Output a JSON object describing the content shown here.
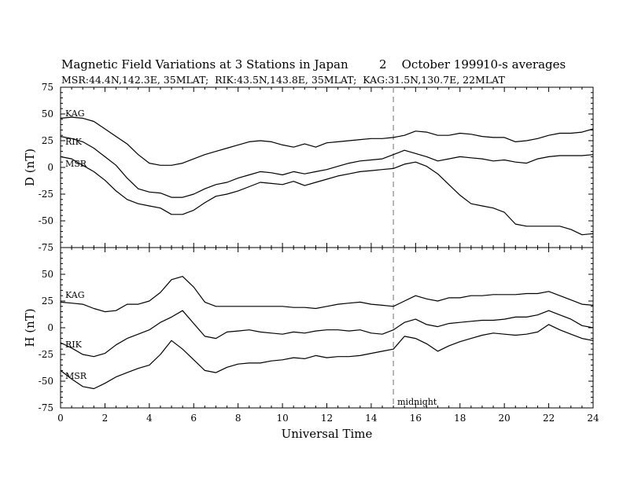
{
  "header": {
    "title": "Magnetic Field Variations at 3 Stations in Japan",
    "date": "2    October 1999",
    "averaging": "10-s averages",
    "stations_line": "MSR:44.4N,142.3E, 35MLAT;  RIK:43.5N,143.8E, 35MLAT;  KAG:31.5N,130.7E, 22MLAT"
  },
  "chart_data": [
    {
      "type": "line",
      "panel": "upper",
      "ylabel": "D (nT)",
      "xlabel": "",
      "ylim": [
        -75,
        75
      ],
      "xlim": [
        0,
        24
      ],
      "yticks": [
        75,
        50,
        25,
        0,
        -25,
        -50,
        -75
      ],
      "ytick_labels": [
        "75",
        "50",
        "25",
        "0",
        "-25",
        "-50",
        "-75"
      ],
      "grid": false,
      "series": [
        {
          "name": "KAG",
          "x": [
            0,
            0.5,
            1,
            1.5,
            2,
            2.5,
            3,
            3.5,
            4,
            4.5,
            5,
            5.5,
            6,
            6.5,
            7,
            7.5,
            8,
            8.5,
            9,
            9.5,
            10,
            10.5,
            11,
            11.5,
            12,
            12.5,
            13,
            13.5,
            14,
            14.5,
            15,
            15.5,
            16,
            16.5,
            17,
            17.5,
            18,
            18.5,
            19,
            19.5,
            20,
            20.5,
            21,
            21.5,
            22,
            22.5,
            23,
            23.5,
            24
          ],
          "y": [
            46,
            47,
            46,
            43,
            36,
            29,
            22,
            12,
            4,
            2,
            2,
            4,
            8,
            12,
            15,
            18,
            21,
            24,
            25,
            24,
            21,
            19,
            22,
            19,
            23,
            24,
            25,
            26,
            27,
            27,
            28,
            30,
            34,
            33,
            30,
            30,
            32,
            31,
            29,
            28,
            28,
            24,
            25,
            27,
            30,
            32,
            32,
            33,
            36
          ]
        },
        {
          "name": "RIK",
          "x": [
            0,
            0.5,
            1,
            1.5,
            2,
            2.5,
            3,
            3.5,
            4,
            4.5,
            5,
            5.5,
            6,
            6.5,
            7,
            7.5,
            8,
            8.5,
            9,
            9.5,
            10,
            10.5,
            11,
            11.5,
            12,
            12.5,
            13,
            13.5,
            14,
            14.5,
            15,
            15.5,
            16,
            16.5,
            17,
            17.5,
            18,
            18.5,
            19,
            19.5,
            20,
            20.5,
            21,
            21.5,
            22,
            22.5,
            23,
            23.5,
            24
          ],
          "y": [
            29,
            27,
            24,
            18,
            10,
            2,
            -10,
            -20,
            -23,
            -24,
            -28,
            -28,
            -25,
            -20,
            -16,
            -14,
            -10,
            -7,
            -4,
            -5,
            -7,
            -4,
            -6,
            -4,
            -2,
            1,
            4,
            6,
            7,
            8,
            12,
            16,
            13,
            10,
            6,
            8,
            10,
            9,
            8,
            6,
            7,
            5,
            4,
            8,
            10,
            11,
            11,
            11,
            12
          ]
        },
        {
          "name": "MSR",
          "x": [
            0,
            0.5,
            1,
            1.5,
            2,
            2.5,
            3,
            3.5,
            4,
            4.5,
            5,
            5.5,
            6,
            6.5,
            7,
            7.5,
            8,
            8.5,
            9,
            9.5,
            10,
            10.5,
            11,
            11.5,
            12,
            12.5,
            13,
            13.5,
            14,
            14.5,
            15,
            15.5,
            16,
            16.5,
            17,
            17.5,
            18,
            18.5,
            19,
            19.5,
            20,
            20.5,
            21,
            21.5,
            22,
            22.5,
            23,
            23.5,
            24
          ],
          "y": [
            10,
            8,
            2,
            -4,
            -12,
            -22,
            -30,
            -34,
            -36,
            -38,
            -44,
            -44,
            -40,
            -33,
            -27,
            -25,
            -22,
            -18,
            -14,
            -15,
            -16,
            -13,
            -17,
            -14,
            -11,
            -8,
            -6,
            -4,
            -3,
            -2,
            -1,
            3,
            5,
            1,
            -6,
            -16,
            -26,
            -34,
            -36,
            -38,
            -42,
            -53,
            -55,
            -55,
            -55,
            -55,
            -58,
            -63,
            -62
          ]
        }
      ]
    },
    {
      "type": "line",
      "panel": "lower",
      "ylabel": "H (nT)",
      "xlabel": "Universal Time",
      "ylim": [
        -75,
        75
      ],
      "xlim": [
        0,
        24
      ],
      "xticks": [
        0,
        2,
        4,
        6,
        8,
        10,
        12,
        14,
        16,
        18,
        20,
        22,
        24
      ],
      "xtick_labels": [
        "0",
        "2",
        "4",
        "6",
        "8",
        "10",
        "12",
        "14",
        "16",
        "18",
        "20",
        "22",
        "24"
      ],
      "yticks": [
        50,
        25,
        0,
        -25,
        -50,
        -75
      ],
      "ytick_labels": [
        "50",
        "25",
        "0",
        "-25",
        "-50",
        "-75"
      ],
      "grid": false,
      "series": [
        {
          "name": "KAG",
          "x": [
            0,
            0.5,
            1,
            1.5,
            2,
            2.5,
            3,
            3.5,
            4,
            4.5,
            5,
            5.5,
            6,
            6.5,
            7,
            7.5,
            8,
            8.5,
            9,
            9.5,
            10,
            10.5,
            11,
            11.5,
            12,
            12.5,
            13,
            13.5,
            14,
            14.5,
            15,
            15.5,
            16,
            16.5,
            17,
            17.5,
            18,
            18.5,
            19,
            19.5,
            20,
            20.5,
            21,
            21.5,
            22,
            22.5,
            23,
            23.5,
            24
          ],
          "y": [
            24,
            23,
            22,
            18,
            15,
            16,
            22,
            22,
            25,
            33,
            45,
            48,
            38,
            24,
            20,
            20,
            20,
            20,
            20,
            20,
            20,
            19,
            19,
            18,
            20,
            22,
            23,
            24,
            22,
            21,
            20,
            25,
            30,
            27,
            25,
            28,
            28,
            30,
            30,
            31,
            31,
            31,
            32,
            32,
            34,
            30,
            26,
            22,
            21
          ]
        },
        {
          "name": "RIK",
          "x": [
            0,
            0.5,
            1,
            1.5,
            2,
            2.5,
            3,
            3.5,
            4,
            4.5,
            5,
            5.5,
            6,
            6.5,
            7,
            7.5,
            8,
            8.5,
            9,
            9.5,
            10,
            10.5,
            11,
            11.5,
            12,
            12.5,
            13,
            13.5,
            14,
            14.5,
            15,
            15.5,
            16,
            16.5,
            17,
            17.5,
            18,
            18.5,
            19,
            19.5,
            20,
            20.5,
            21,
            21.5,
            22,
            22.5,
            23,
            23.5,
            24
          ],
          "y": [
            -14,
            -19,
            -25,
            -27,
            -24,
            -16,
            -10,
            -6,
            -2,
            5,
            10,
            16,
            4,
            -8,
            -10,
            -4,
            -3,
            -2,
            -4,
            -5,
            -6,
            -4,
            -5,
            -3,
            -2,
            -2,
            -3,
            -2,
            -5,
            -6,
            -2,
            5,
            8,
            3,
            1,
            4,
            5,
            6,
            7,
            7,
            8,
            10,
            10,
            12,
            16,
            12,
            8,
            2,
            0
          ]
        },
        {
          "name": "MSR",
          "x": [
            0,
            0.5,
            1,
            1.5,
            2,
            2.5,
            3,
            3.5,
            4,
            4.5,
            5,
            5.5,
            6,
            6.5,
            7,
            7.5,
            8,
            8.5,
            9,
            9.5,
            10,
            10.5,
            11,
            11.5,
            12,
            12.5,
            13,
            13.5,
            14,
            14.5,
            15,
            15.5,
            16,
            16.5,
            17,
            17.5,
            18,
            18.5,
            19,
            19.5,
            20,
            20.5,
            21,
            21.5,
            22,
            22.5,
            23,
            23.5,
            24
          ],
          "y": [
            -40,
            -48,
            -55,
            -57,
            -52,
            -46,
            -42,
            -38,
            -35,
            -25,
            -12,
            -20,
            -30,
            -40,
            -42,
            -37,
            -34,
            -33,
            -33,
            -31,
            -30,
            -28,
            -29,
            -26,
            -28,
            -27,
            -27,
            -26,
            -24,
            -22,
            -20,
            -8,
            -10,
            -15,
            -22,
            -17,
            -13,
            -10,
            -7,
            -5,
            -6,
            -7,
            -6,
            -4,
            3,
            -2,
            -6,
            -10,
            -12
          ]
        }
      ]
    }
  ],
  "annotations": {
    "midnight_ut": 15,
    "midnight_label": "midnight",
    "marker_color": "#a0a0a0",
    "line_color": "#000000"
  }
}
